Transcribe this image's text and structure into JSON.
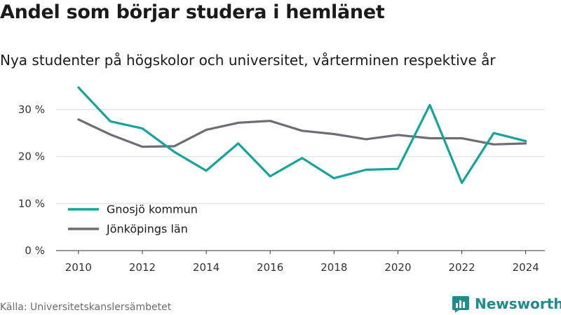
{
  "title": "Andel som börjar studera i hemlänet",
  "subtitle": "Nya studenter på högskolor och universitet, vårterminen respektive år",
  "source": "Källa: Universitetskanslersämbetet",
  "brand": "Newsworthy",
  "icons": {
    "brand_logo": "bar-chart-logo-icon"
  },
  "colors": {
    "gnosjo": "#17a39a",
    "jonkoping": "#6d6d75",
    "grid": "#dcdcdc",
    "brand": "#1e8c8a"
  },
  "chart_data": {
    "type": "line",
    "title": "Andel som börjar studera i hemlänet",
    "x": [
      2010,
      2011,
      2012,
      2013,
      2014,
      2015,
      2016,
      2017,
      2018,
      2019,
      2020,
      2021,
      2022,
      2023,
      2024
    ],
    "xticks": [
      2010,
      2012,
      2014,
      2016,
      2018,
      2020,
      2022,
      2024
    ],
    "yticks": [
      0,
      10,
      20,
      30
    ],
    "ytick_labels": [
      "0 %",
      "10 %",
      "20 %",
      "30 %"
    ],
    "xlim": [
      2009.3,
      2024.6
    ],
    "ylim": [
      0,
      35
    ],
    "grid": "horizontal",
    "legend_position": "bottom-left",
    "series": [
      {
        "name": "Gnosjö kommun",
        "color": "#17a39a",
        "values": [
          34.7,
          27.5,
          26.0,
          21.0,
          17.0,
          22.8,
          15.8,
          19.7,
          15.4,
          17.2,
          17.4,
          31.0,
          14.4,
          25.0,
          23.3
        ]
      },
      {
        "name": "Jönköpings län",
        "color": "#6d6d75",
        "values": [
          27.9,
          24.7,
          22.1,
          22.2,
          25.7,
          27.2,
          27.6,
          25.5,
          24.8,
          23.7,
          24.6,
          23.9,
          23.9,
          22.6,
          22.8
        ]
      }
    ]
  }
}
